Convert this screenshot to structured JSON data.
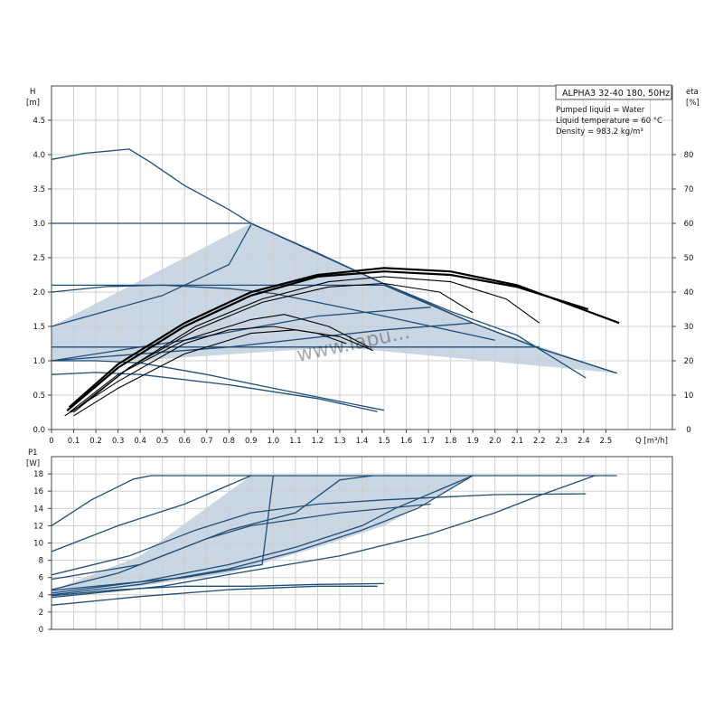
{
  "chart_data": [
    {
      "type": "line",
      "title": "ALPHA3 32-40 180, 50Hz",
      "notes": [
        "Pumped liquid = Water",
        "Liquid temperature = 60 °C",
        "Density = 983.2 kg/m³"
      ],
      "ylabel": [
        "H",
        "[m]"
      ],
      "y2label": [
        "eta",
        "[%]"
      ],
      "xlabel": "Q [m³/h]",
      "xlim": [
        0,
        2.8
      ],
      "ylim": [
        0,
        5
      ],
      "y2lim": [
        0,
        100
      ],
      "grid": true,
      "x_ticks": [
        "0",
        "0.1",
        "0.2",
        "0.3",
        "0.4",
        "0.5",
        "0.6",
        "0.7",
        "0.8",
        "0.9",
        "1.0",
        "1.1",
        "1.2",
        "1.3",
        "1.4",
        "1.5",
        "1.6",
        "1.7",
        "1.8",
        "1.9",
        "2.0",
        "2.1",
        "2.2",
        "2.3",
        "2.4",
        "2.5"
      ],
      "y_ticks": [
        "0.0",
        "0.5",
        "1.0",
        "1.5",
        "2.0",
        "2.5",
        "3.0",
        "3.5",
        "4.0",
        "4.5"
      ],
      "y2_ticks": [
        "0",
        "10",
        "20",
        "30",
        "40",
        "50",
        "60",
        "70",
        "80"
      ],
      "shaded_region": [
        [
          0,
          1.5
        ],
        [
          0.9,
          3.0
        ],
        [
          1.9,
          1.55
        ],
        [
          2.55,
          0.82
        ],
        [
          1.3,
          1.2
        ],
        [
          0.6,
          1.05
        ],
        [
          0.4,
          1.0
        ],
        [
          0,
          1.0
        ]
      ],
      "head_curves": [
        [
          [
            0,
            3.93
          ],
          [
            0.15,
            4.02
          ],
          [
            0.35,
            4.08
          ],
          [
            0.45,
            3.88
          ],
          [
            0.6,
            3.55
          ],
          [
            0.8,
            3.2
          ],
          [
            0.9,
            3.0
          ],
          [
            1.2,
            2.57
          ],
          [
            1.5,
            2.12
          ],
          [
            1.8,
            1.72
          ],
          [
            2.1,
            1.37
          ],
          [
            2.41,
            0.75
          ]
        ],
        [
          [
            0,
            3.0
          ],
          [
            0.9,
            3.0
          ],
          [
            1.5,
            2.12
          ],
          [
            1.9,
            1.55
          ],
          [
            2.2,
            1.18
          ],
          [
            2.55,
            0.82
          ]
        ],
        [
          [
            0,
            2.1
          ],
          [
            1.5,
            2.1
          ],
          [
            1.9,
            1.55
          ],
          [
            2.2,
            1.18
          ],
          [
            2.55,
            0.82
          ]
        ],
        [
          [
            0,
            1.2
          ],
          [
            2.2,
            1.2
          ]
        ],
        [
          [
            0,
            1.5
          ],
          [
            0.5,
            1.95
          ],
          [
            0.8,
            2.4
          ],
          [
            0.9,
            2.98
          ]
        ],
        [
          [
            0,
            2.0
          ],
          [
            0.25,
            2.08
          ],
          [
            0.5,
            2.1
          ],
          [
            0.8,
            2.05
          ],
          [
            1.0,
            1.98
          ],
          [
            1.2,
            1.85
          ],
          [
            1.5,
            1.65
          ],
          [
            2.0,
            1.3
          ]
        ],
        [
          [
            0,
            1.0
          ],
          [
            0.6,
            1.3
          ],
          [
            1.2,
            1.65
          ],
          [
            1.71,
            1.78
          ]
        ],
        [
          [
            0,
            1.0
          ],
          [
            0.8,
            1.2
          ],
          [
            1.5,
            1.45
          ],
          [
            1.9,
            1.55
          ]
        ],
        [
          [
            0,
            1.0
          ],
          [
            0.2,
            1.0
          ],
          [
            0.4,
            0.97
          ],
          [
            0.7,
            0.8
          ],
          [
            1.0,
            0.6
          ],
          [
            1.5,
            0.28
          ]
        ],
        [
          [
            0,
            0.8
          ],
          [
            0.2,
            0.83
          ],
          [
            0.4,
            0.8
          ],
          [
            0.8,
            0.65
          ],
          [
            1.2,
            0.45
          ],
          [
            1.47,
            0.26
          ]
        ]
      ],
      "eta_curves": [
        [
          [
            0.08,
            6.5
          ],
          [
            0.3,
            19
          ],
          [
            0.6,
            31
          ],
          [
            0.9,
            40
          ],
          [
            1.2,
            45
          ],
          [
            1.5,
            47
          ],
          [
            1.8,
            46
          ],
          [
            2.1,
            42
          ],
          [
            2.56,
            31
          ]
        ],
        [
          [
            0.07,
            5.5
          ],
          [
            0.3,
            18
          ],
          [
            0.6,
            30
          ],
          [
            0.9,
            39
          ],
          [
            1.2,
            44.5
          ],
          [
            1.5,
            46
          ],
          [
            1.8,
            45
          ],
          [
            2.1,
            41.5
          ],
          [
            2.42,
            35
          ]
        ],
        [
          [
            0.1,
            5
          ],
          [
            0.35,
            18
          ],
          [
            0.65,
            30
          ],
          [
            0.95,
            38
          ],
          [
            1.25,
            43
          ],
          [
            1.5,
            44.5
          ],
          [
            1.8,
            43
          ],
          [
            2.05,
            38
          ],
          [
            2.2,
            31
          ]
        ],
        [
          [
            0.09,
            5
          ],
          [
            0.35,
            18
          ],
          [
            0.65,
            29
          ],
          [
            0.95,
            37
          ],
          [
            1.25,
            41.5
          ],
          [
            1.5,
            42.5
          ],
          [
            1.75,
            40
          ],
          [
            1.9,
            34
          ]
        ],
        [
          [
            0.08,
            5
          ],
          [
            0.3,
            16
          ],
          [
            0.6,
            26
          ],
          [
            0.9,
            32
          ],
          [
            1.05,
            33.5
          ],
          [
            1.25,
            30
          ],
          [
            1.43,
            24
          ]
        ],
        [
          [
            0.06,
            4
          ],
          [
            0.3,
            14
          ],
          [
            0.6,
            25
          ],
          [
            0.8,
            29
          ],
          [
            1.0,
            30
          ],
          [
            1.2,
            28
          ],
          [
            1.33,
            25
          ]
        ],
        [
          [
            0.1,
            4
          ],
          [
            0.3,
            12
          ],
          [
            0.6,
            22
          ],
          [
            0.9,
            28
          ],
          [
            1.1,
            29
          ],
          [
            1.3,
            27
          ],
          [
            1.45,
            23
          ]
        ]
      ]
    },
    {
      "type": "line",
      "ylabel": [
        "P1",
        "[W]"
      ],
      "xlim": [
        0,
        2.8
      ],
      "ylim": [
        0,
        20
      ],
      "grid": true,
      "y_ticks": [
        "0",
        "2",
        "4",
        "6",
        "8",
        "10",
        "12",
        "14",
        "16",
        "18"
      ],
      "shaded_region": [
        [
          0,
          4.5
        ],
        [
          0.4,
          8.5
        ],
        [
          0.9,
          17.8
        ],
        [
          1.9,
          17.8
        ],
        [
          1.5,
          12
        ],
        [
          1.2,
          9.5
        ],
        [
          0.8,
          6.5
        ],
        [
          0.4,
          5.0
        ],
        [
          0,
          4.0
        ]
      ],
      "power_curves": [
        [
          [
            0,
            12
          ],
          [
            0.18,
            15
          ],
          [
            0.37,
            17.4
          ],
          [
            0.45,
            17.8
          ],
          [
            2.55,
            17.8
          ]
        ],
        [
          [
            0,
            9
          ],
          [
            0.3,
            12
          ],
          [
            0.6,
            14.5
          ],
          [
            0.9,
            17.8
          ]
        ],
        [
          [
            0,
            6.3
          ],
          [
            0.35,
            8.5
          ],
          [
            0.65,
            11.5
          ],
          [
            0.9,
            13.5
          ],
          [
            1.2,
            14.5
          ],
          [
            1.5,
            15
          ],
          [
            2.0,
            15.6
          ],
          [
            2.41,
            15.7
          ]
        ],
        [
          [
            0,
            5.8
          ],
          [
            0.4,
            7.5
          ],
          [
            0.7,
            10.5
          ],
          [
            0.9,
            12
          ],
          [
            1.3,
            13.5
          ],
          [
            1.71,
            14.5
          ]
        ],
        [
          [
            0,
            4.6
          ],
          [
            0.3,
            6.5
          ],
          [
            0.6,
            9.5
          ],
          [
            0.8,
            11.5
          ],
          [
            1.1,
            13.5
          ],
          [
            1.3,
            17.3
          ],
          [
            1.45,
            17.8
          ]
        ],
        [
          [
            0,
            4.2
          ],
          [
            0.4,
            5.5
          ],
          [
            0.8,
            7.5
          ],
          [
            1.1,
            9.5
          ],
          [
            1.4,
            12
          ],
          [
            1.55,
            14
          ],
          [
            1.9,
            17.8
          ]
        ],
        [
          [
            0,
            4.0
          ],
          [
            0.4,
            5.2
          ],
          [
            0.8,
            7
          ],
          [
            1.1,
            9
          ],
          [
            1.4,
            11.5
          ],
          [
            1.65,
            14
          ],
          [
            1.9,
            17.8
          ]
        ],
        [
          [
            0,
            3.7
          ],
          [
            0.5,
            5.0
          ],
          [
            0.9,
            6.8
          ],
          [
            1.3,
            8.5
          ],
          [
            1.7,
            11
          ],
          [
            2.0,
            13.5
          ],
          [
            2.2,
            15.5
          ],
          [
            2.45,
            17.8
          ]
        ],
        [
          [
            0,
            3.9
          ],
          [
            0.3,
            4.6
          ],
          [
            0.6,
            5.0
          ],
          [
            0.9,
            5.0
          ],
          [
            1.2,
            5.2
          ],
          [
            1.5,
            5.3
          ]
        ],
        [
          [
            0,
            2.8
          ],
          [
            0.4,
            3.8
          ],
          [
            0.8,
            4.6
          ],
          [
            1.2,
            5.0
          ],
          [
            1.47,
            5.0
          ]
        ],
        [
          [
            0,
            4.5
          ],
          [
            0.6,
            6.0
          ],
          [
            0.95,
            7.5
          ],
          [
            1.0,
            17.8
          ]
        ]
      ]
    }
  ],
  "watermark": "www.lapu..."
}
